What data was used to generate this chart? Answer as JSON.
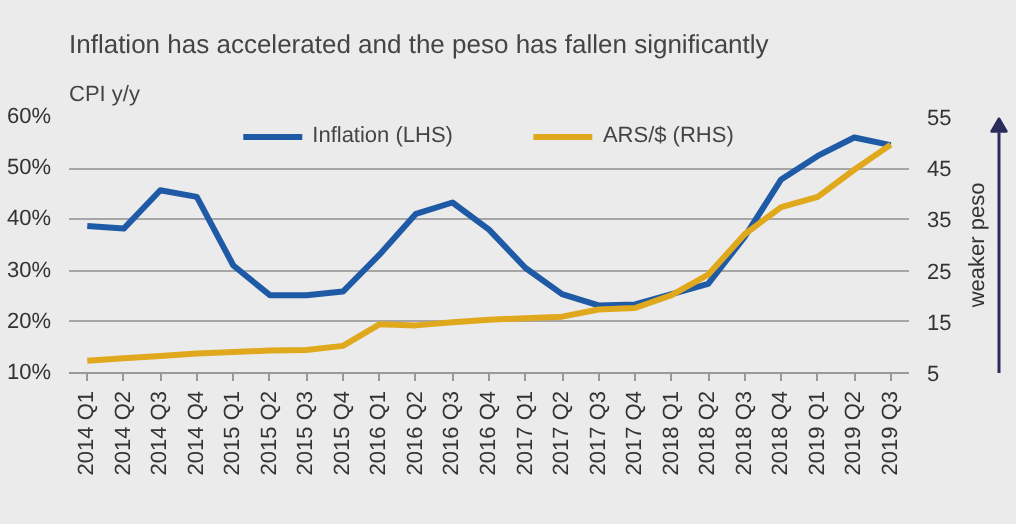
{
  "chart_data": {
    "type": "line",
    "title": "Inflation has accelerated and the peso has fallen significantly",
    "ylabel": "CPI y/y",
    "y2label": "weaker peso",
    "categories": [
      "2014 Q1",
      "2014 Q2",
      "2014 Q3",
      "2014 Q4",
      "2015 Q1",
      "2015 Q2",
      "2015 Q3",
      "2015 Q4",
      "2016 Q1",
      "2016 Q2",
      "2016 Q3",
      "2016 Q4",
      "2017 Q1",
      "2017 Q2",
      "2017 Q3",
      "2017 Q4",
      "2018 Q1",
      "2018 Q2",
      "2018 Q3",
      "2018 Q4",
      "2019 Q1",
      "2019 Q2",
      "2019 Q3"
    ],
    "series": [
      {
        "name": "Inflation (LHS)",
        "color": "#1f5aa6",
        "values": [
          38.7,
          38.2,
          45.7,
          44.4,
          31,
          25.2,
          25.2,
          25.9,
          33.1,
          41.1,
          43.3,
          38,
          30.5,
          25.4,
          23.2,
          23.4,
          25.4,
          27.4,
          36.6,
          47.8,
          52.4,
          56,
          54.5
        ]
      },
      {
        "name": "ARS/$ (RHS)",
        "color": "#e0a81c",
        "axis": "y2",
        "values": [
          7.4,
          7.9,
          8.3,
          8.8,
          9.1,
          9.4,
          9.5,
          10.3,
          14.5,
          14.3,
          14.9,
          15.4,
          15.7,
          16,
          17.4,
          17.7,
          20.2,
          24.2,
          32.1,
          37.4,
          39.4,
          44.7,
          49.6
        ]
      }
    ],
    "ylim": [
      10,
      60
    ],
    "yticks": [
      {
        "value": 10,
        "label": "10%"
      },
      {
        "value": 20,
        "label": "20%"
      },
      {
        "value": 30,
        "label": "30%"
      },
      {
        "value": 40,
        "label": "40%"
      },
      {
        "value": 50,
        "label": "50%"
      },
      {
        "value": 60,
        "label": "60%"
      }
    ],
    "y2lim": [
      5,
      55
    ],
    "y2ticks": [
      5,
      15,
      25,
      35,
      45,
      55
    ],
    "grid": "y",
    "legend": "top",
    "marker": "none",
    "line_style": "solid"
  }
}
